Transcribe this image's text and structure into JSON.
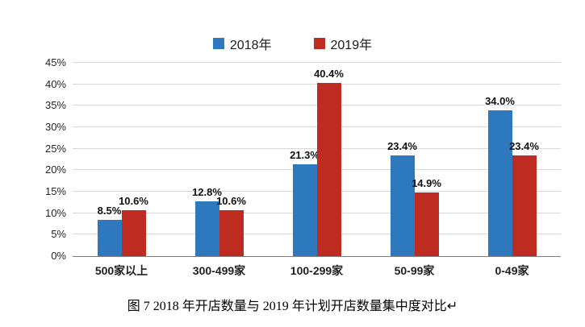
{
  "chart_data": {
    "type": "bar",
    "categories": [
      "500家以上",
      "300-499家",
      "100-299家",
      "50-99家",
      "0-49家"
    ],
    "series": [
      {
        "name": "2018年",
        "color": "#2e78be",
        "values": [
          8.5,
          12.8,
          21.3,
          23.4,
          34.0
        ]
      },
      {
        "name": "2019年",
        "color": "#be2b21",
        "values": [
          10.6,
          10.6,
          40.4,
          14.9,
          23.4
        ]
      }
    ],
    "title": "",
    "xlabel": "",
    "ylabel": "",
    "ylim": [
      0,
      45
    ],
    "ytick_step": 5,
    "ytick_suffix": "%",
    "value_suffix": "%",
    "grid": true,
    "legend_position": "top"
  },
  "caption": "图 7  2018 年开店数量与 2019 年计划开店数量集中度对比↵"
}
